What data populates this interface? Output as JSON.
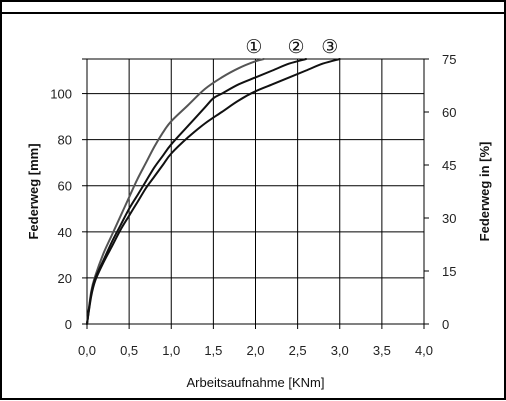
{
  "chart_data": {
    "type": "line",
    "xlabel": "Arbeitsaufnahme [KNm]",
    "ylabel": "Federweg [mm]",
    "y2label": "Federweg in [%]",
    "xlim": [
      0,
      4
    ],
    "ylim": [
      0,
      115
    ],
    "y2lim": [
      0,
      75
    ],
    "grid": true,
    "x_ticks": [
      "0,0",
      "0,5",
      "1,0",
      "1,5",
      "2,0",
      "2,5",
      "3,0",
      "3,5",
      "4,0"
    ],
    "y_ticks": [
      "0",
      "20",
      "40",
      "60",
      "80",
      "100"
    ],
    "y2_ticks": [
      "0",
      "15",
      "30",
      "45",
      "60",
      "75"
    ],
    "series": [
      {
        "name": "①",
        "color": "#555555",
        "x": [
          0,
          0.05,
          0.1,
          0.2,
          0.3,
          0.4,
          0.5,
          0.6,
          0.7,
          0.8,
          0.9,
          1.0,
          1.2,
          1.4,
          1.6,
          1.8,
          2.0,
          2.1
        ],
        "y": [
          0,
          14,
          21,
          31,
          39,
          47,
          55,
          63,
          70,
          77,
          83,
          88,
          95,
          102,
          107,
          111,
          114,
          115
        ]
      },
      {
        "name": "②",
        "color": "#111111",
        "x": [
          0,
          0.05,
          0.1,
          0.2,
          0.3,
          0.4,
          0.5,
          0.6,
          0.7,
          0.8,
          0.9,
          1.0,
          1.2,
          1.4,
          1.5,
          1.6,
          1.8,
          2.0,
          2.2,
          2.4,
          2.6
        ],
        "y": [
          0,
          13,
          20,
          28,
          36,
          43,
          50,
          56,
          62,
          68,
          73,
          78,
          86,
          94,
          98,
          100,
          104,
          107,
          110,
          113,
          115
        ]
      },
      {
        "name": "③",
        "color": "#111111",
        "x": [
          0,
          0.05,
          0.1,
          0.2,
          0.3,
          0.4,
          0.5,
          0.6,
          0.7,
          0.8,
          0.9,
          1.0,
          1.2,
          1.4,
          1.6,
          1.8,
          2.0,
          2.2,
          2.4,
          2.6,
          2.8,
          3.0
        ],
        "y": [
          0,
          12,
          19,
          27,
          34,
          41,
          47,
          53,
          59,
          64,
          69,
          74,
          81,
          87,
          92,
          97,
          101,
          104,
          107,
          110,
          113,
          115
        ]
      }
    ]
  }
}
